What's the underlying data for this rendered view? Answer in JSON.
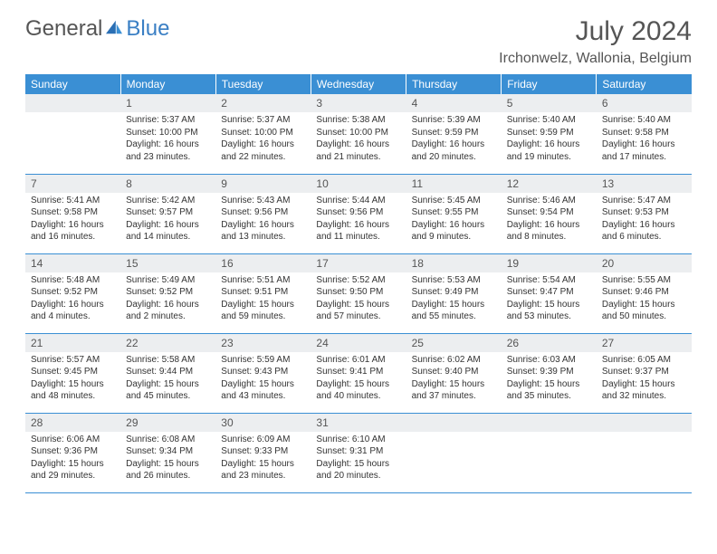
{
  "logo": {
    "part1": "General",
    "part2": "Blue"
  },
  "title": "July 2024",
  "location": "Irchonwelz, Wallonia, Belgium",
  "colors": {
    "header_bg": "#3a8fd4",
    "header_text": "#ffffff",
    "daynum_bg": "#eceef0",
    "border": "#3a8fd4",
    "text": "#333333",
    "logo_blue": "#3a7fc4"
  },
  "weekdays": [
    "Sunday",
    "Monday",
    "Tuesday",
    "Wednesday",
    "Thursday",
    "Friday",
    "Saturday"
  ],
  "weeks": [
    [
      {
        "day": "",
        "sunrise": "",
        "sunset": "",
        "daylight1": "",
        "daylight2": ""
      },
      {
        "day": "1",
        "sunrise": "Sunrise: 5:37 AM",
        "sunset": "Sunset: 10:00 PM",
        "daylight1": "Daylight: 16 hours",
        "daylight2": "and 23 minutes."
      },
      {
        "day": "2",
        "sunrise": "Sunrise: 5:37 AM",
        "sunset": "Sunset: 10:00 PM",
        "daylight1": "Daylight: 16 hours",
        "daylight2": "and 22 minutes."
      },
      {
        "day": "3",
        "sunrise": "Sunrise: 5:38 AM",
        "sunset": "Sunset: 10:00 PM",
        "daylight1": "Daylight: 16 hours",
        "daylight2": "and 21 minutes."
      },
      {
        "day": "4",
        "sunrise": "Sunrise: 5:39 AM",
        "sunset": "Sunset: 9:59 PM",
        "daylight1": "Daylight: 16 hours",
        "daylight2": "and 20 minutes."
      },
      {
        "day": "5",
        "sunrise": "Sunrise: 5:40 AM",
        "sunset": "Sunset: 9:59 PM",
        "daylight1": "Daylight: 16 hours",
        "daylight2": "and 19 minutes."
      },
      {
        "day": "6",
        "sunrise": "Sunrise: 5:40 AM",
        "sunset": "Sunset: 9:58 PM",
        "daylight1": "Daylight: 16 hours",
        "daylight2": "and 17 minutes."
      }
    ],
    [
      {
        "day": "7",
        "sunrise": "Sunrise: 5:41 AM",
        "sunset": "Sunset: 9:58 PM",
        "daylight1": "Daylight: 16 hours",
        "daylight2": "and 16 minutes."
      },
      {
        "day": "8",
        "sunrise": "Sunrise: 5:42 AM",
        "sunset": "Sunset: 9:57 PM",
        "daylight1": "Daylight: 16 hours",
        "daylight2": "and 14 minutes."
      },
      {
        "day": "9",
        "sunrise": "Sunrise: 5:43 AM",
        "sunset": "Sunset: 9:56 PM",
        "daylight1": "Daylight: 16 hours",
        "daylight2": "and 13 minutes."
      },
      {
        "day": "10",
        "sunrise": "Sunrise: 5:44 AM",
        "sunset": "Sunset: 9:56 PM",
        "daylight1": "Daylight: 16 hours",
        "daylight2": "and 11 minutes."
      },
      {
        "day": "11",
        "sunrise": "Sunrise: 5:45 AM",
        "sunset": "Sunset: 9:55 PM",
        "daylight1": "Daylight: 16 hours",
        "daylight2": "and 9 minutes."
      },
      {
        "day": "12",
        "sunrise": "Sunrise: 5:46 AM",
        "sunset": "Sunset: 9:54 PM",
        "daylight1": "Daylight: 16 hours",
        "daylight2": "and 8 minutes."
      },
      {
        "day": "13",
        "sunrise": "Sunrise: 5:47 AM",
        "sunset": "Sunset: 9:53 PM",
        "daylight1": "Daylight: 16 hours",
        "daylight2": "and 6 minutes."
      }
    ],
    [
      {
        "day": "14",
        "sunrise": "Sunrise: 5:48 AM",
        "sunset": "Sunset: 9:52 PM",
        "daylight1": "Daylight: 16 hours",
        "daylight2": "and 4 minutes."
      },
      {
        "day": "15",
        "sunrise": "Sunrise: 5:49 AM",
        "sunset": "Sunset: 9:52 PM",
        "daylight1": "Daylight: 16 hours",
        "daylight2": "and 2 minutes."
      },
      {
        "day": "16",
        "sunrise": "Sunrise: 5:51 AM",
        "sunset": "Sunset: 9:51 PM",
        "daylight1": "Daylight: 15 hours",
        "daylight2": "and 59 minutes."
      },
      {
        "day": "17",
        "sunrise": "Sunrise: 5:52 AM",
        "sunset": "Sunset: 9:50 PM",
        "daylight1": "Daylight: 15 hours",
        "daylight2": "and 57 minutes."
      },
      {
        "day": "18",
        "sunrise": "Sunrise: 5:53 AM",
        "sunset": "Sunset: 9:49 PM",
        "daylight1": "Daylight: 15 hours",
        "daylight2": "and 55 minutes."
      },
      {
        "day": "19",
        "sunrise": "Sunrise: 5:54 AM",
        "sunset": "Sunset: 9:47 PM",
        "daylight1": "Daylight: 15 hours",
        "daylight2": "and 53 minutes."
      },
      {
        "day": "20",
        "sunrise": "Sunrise: 5:55 AM",
        "sunset": "Sunset: 9:46 PM",
        "daylight1": "Daylight: 15 hours",
        "daylight2": "and 50 minutes."
      }
    ],
    [
      {
        "day": "21",
        "sunrise": "Sunrise: 5:57 AM",
        "sunset": "Sunset: 9:45 PM",
        "daylight1": "Daylight: 15 hours",
        "daylight2": "and 48 minutes."
      },
      {
        "day": "22",
        "sunrise": "Sunrise: 5:58 AM",
        "sunset": "Sunset: 9:44 PM",
        "daylight1": "Daylight: 15 hours",
        "daylight2": "and 45 minutes."
      },
      {
        "day": "23",
        "sunrise": "Sunrise: 5:59 AM",
        "sunset": "Sunset: 9:43 PM",
        "daylight1": "Daylight: 15 hours",
        "daylight2": "and 43 minutes."
      },
      {
        "day": "24",
        "sunrise": "Sunrise: 6:01 AM",
        "sunset": "Sunset: 9:41 PM",
        "daylight1": "Daylight: 15 hours",
        "daylight2": "and 40 minutes."
      },
      {
        "day": "25",
        "sunrise": "Sunrise: 6:02 AM",
        "sunset": "Sunset: 9:40 PM",
        "daylight1": "Daylight: 15 hours",
        "daylight2": "and 37 minutes."
      },
      {
        "day": "26",
        "sunrise": "Sunrise: 6:03 AM",
        "sunset": "Sunset: 9:39 PM",
        "daylight1": "Daylight: 15 hours",
        "daylight2": "and 35 minutes."
      },
      {
        "day": "27",
        "sunrise": "Sunrise: 6:05 AM",
        "sunset": "Sunset: 9:37 PM",
        "daylight1": "Daylight: 15 hours",
        "daylight2": "and 32 minutes."
      }
    ],
    [
      {
        "day": "28",
        "sunrise": "Sunrise: 6:06 AM",
        "sunset": "Sunset: 9:36 PM",
        "daylight1": "Daylight: 15 hours",
        "daylight2": "and 29 minutes."
      },
      {
        "day": "29",
        "sunrise": "Sunrise: 6:08 AM",
        "sunset": "Sunset: 9:34 PM",
        "daylight1": "Daylight: 15 hours",
        "daylight2": "and 26 minutes."
      },
      {
        "day": "30",
        "sunrise": "Sunrise: 6:09 AM",
        "sunset": "Sunset: 9:33 PM",
        "daylight1": "Daylight: 15 hours",
        "daylight2": "and 23 minutes."
      },
      {
        "day": "31",
        "sunrise": "Sunrise: 6:10 AM",
        "sunset": "Sunset: 9:31 PM",
        "daylight1": "Daylight: 15 hours",
        "daylight2": "and 20 minutes."
      },
      {
        "day": "",
        "sunrise": "",
        "sunset": "",
        "daylight1": "",
        "daylight2": ""
      },
      {
        "day": "",
        "sunrise": "",
        "sunset": "",
        "daylight1": "",
        "daylight2": ""
      },
      {
        "day": "",
        "sunrise": "",
        "sunset": "",
        "daylight1": "",
        "daylight2": ""
      }
    ]
  ]
}
